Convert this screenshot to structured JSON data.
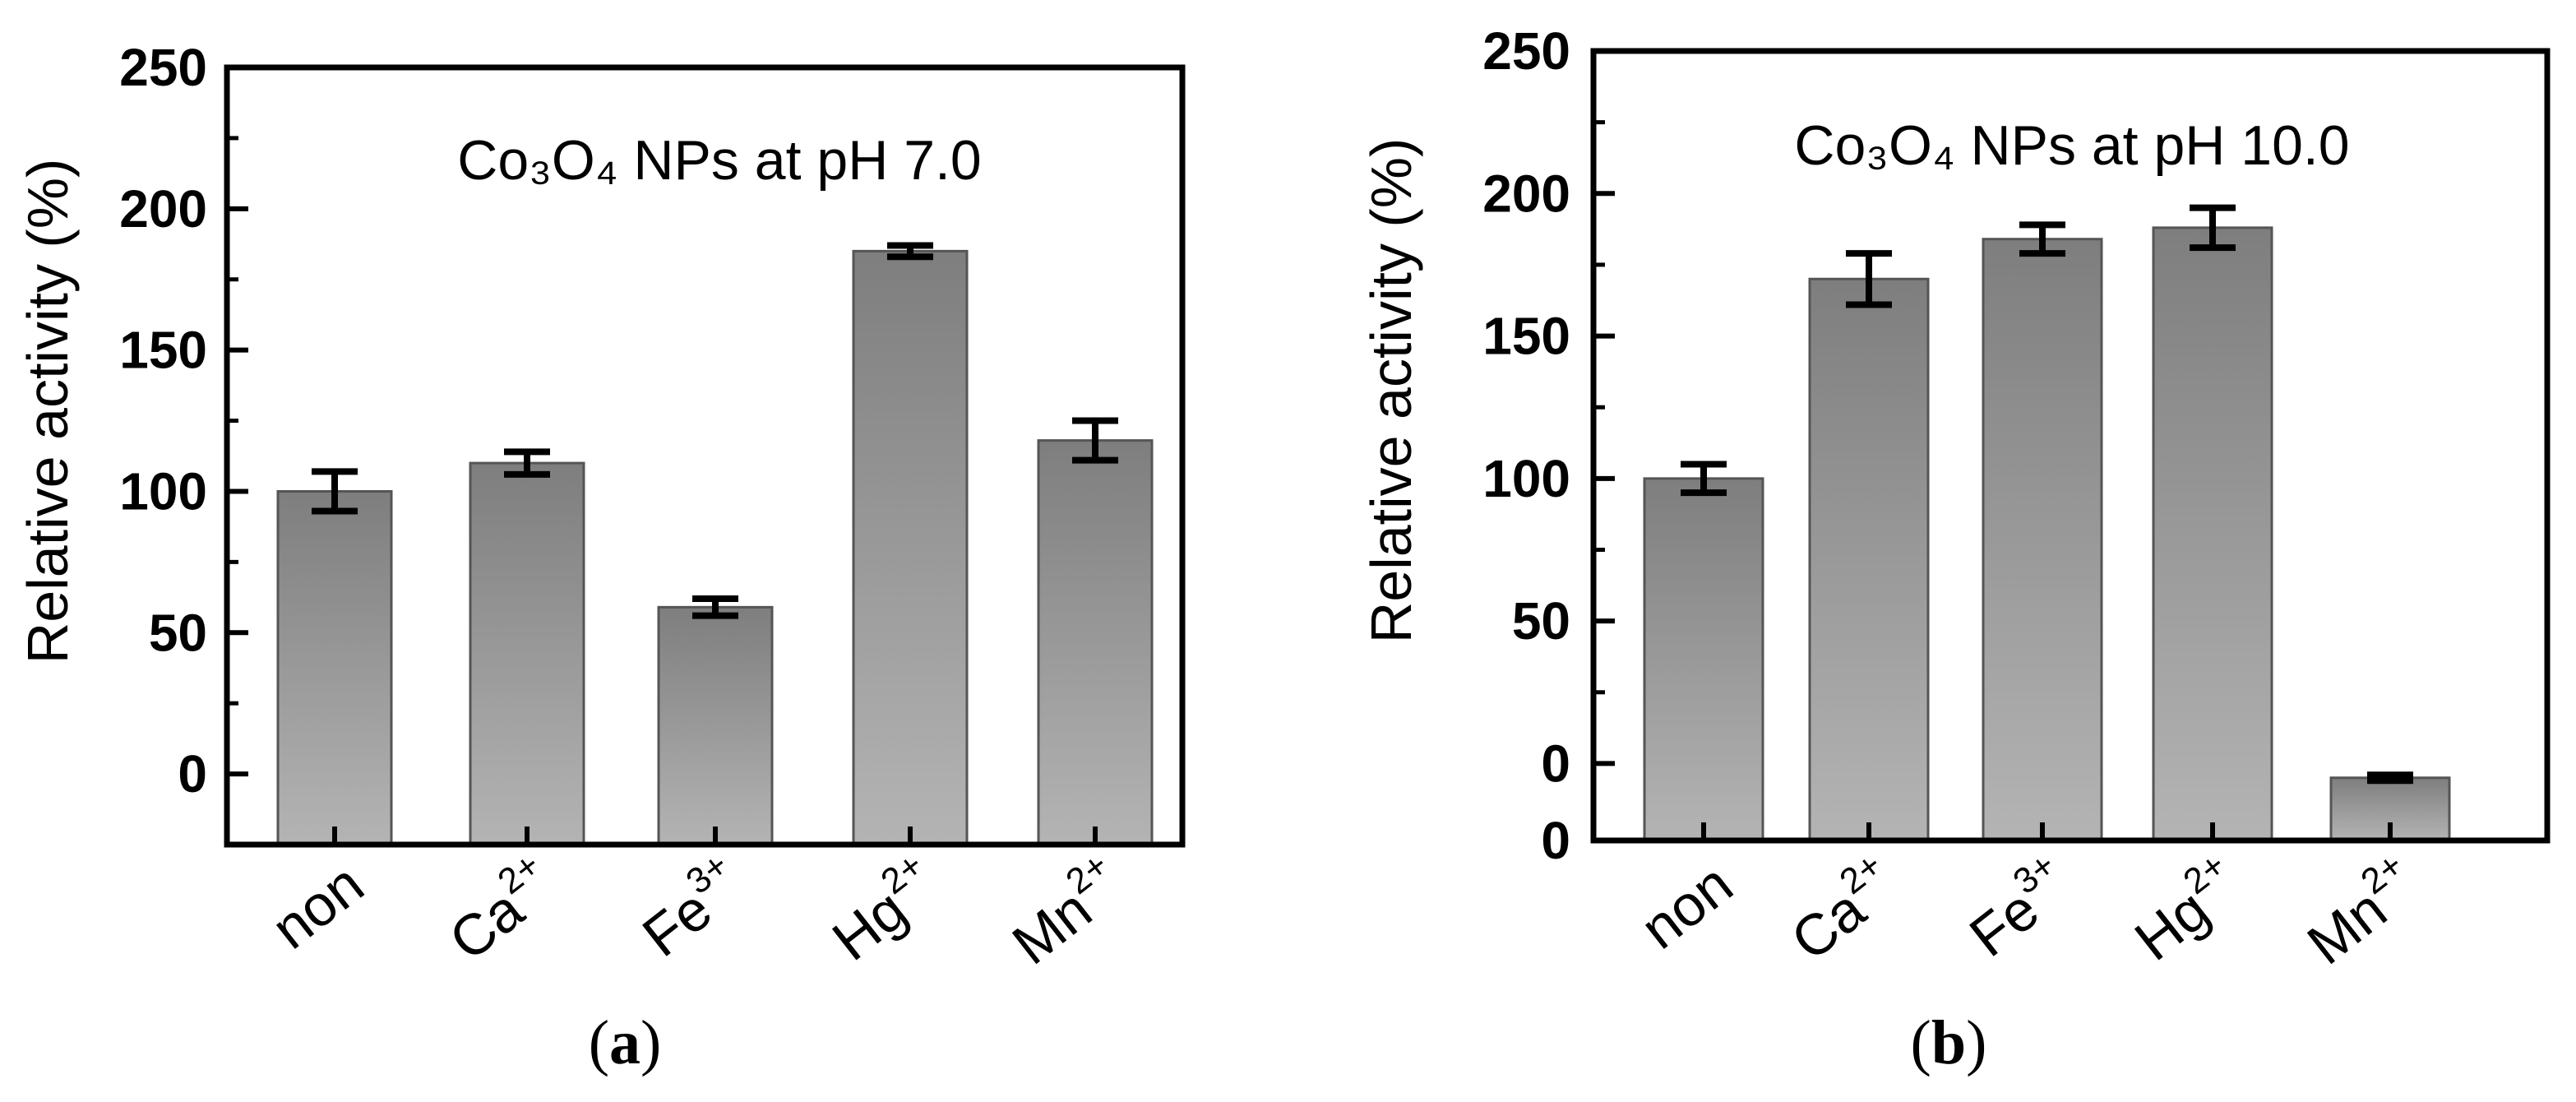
{
  "chart_data": [
    {
      "type": "bar",
      "panel_label": "a",
      "title": "Co₃O₄ NPs at pH 7.0",
      "ylabel": "Relative activity (%)",
      "xlabel": "",
      "ylim": [
        -25,
        250
      ],
      "yticks": [
        "0",
        "50",
        "100",
        "150",
        "200",
        "250"
      ],
      "tick_values": [
        0,
        50,
        100,
        150,
        200,
        250
      ],
      "categories": [
        {
          "base": "non",
          "sup": ""
        },
        {
          "base": "Ca",
          "sup": "2+"
        },
        {
          "base": "Fe",
          "sup": "3+"
        },
        {
          "base": "Hg",
          "sup": "2+"
        },
        {
          "base": "Mn",
          "sup": "2+"
        }
      ],
      "values": [
        100,
        110,
        59,
        185,
        118
      ],
      "errors": [
        7,
        4,
        3,
        2,
        7
      ],
      "grid": false,
      "bar_gradient": [
        "#7e7e7e",
        "#b4b4b4"
      ]
    },
    {
      "type": "bar",
      "panel_label": "b",
      "title": "Co₃O₄ NPs at pH 10.0",
      "ylabel": "Relative activity (%)",
      "xlabel": "",
      "ylim": [
        -27,
        250
      ],
      "yticks": [
        "0",
        "50",
        "100",
        "150",
        "200",
        "250"
      ],
      "tick_values": [
        0,
        50,
        100,
        150,
        200,
        250
      ],
      "extra_tick_label": "0",
      "categories": [
        {
          "base": "non",
          "sup": ""
        },
        {
          "base": "Ca",
          "sup": "2+"
        },
        {
          "base": "Fe",
          "sup": "3+"
        },
        {
          "base": "Hg",
          "sup": "2+"
        },
        {
          "base": "Mn",
          "sup": "2+"
        }
      ],
      "values": [
        100,
        170,
        184,
        188,
        -5
      ],
      "errors": [
        5,
        9,
        5,
        7,
        1
      ],
      "grid": false,
      "bar_gradient": [
        "#7e7e7e",
        "#b4b4b4"
      ]
    }
  ]
}
